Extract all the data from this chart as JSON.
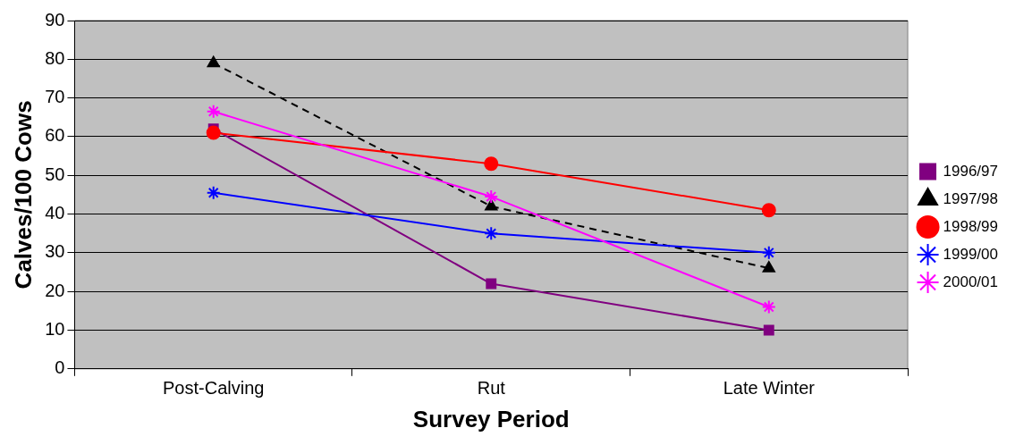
{
  "chart_data": {
    "type": "line",
    "xlabel": "Survey Period",
    "ylabel": "Calves/100 Cows",
    "categories": [
      "Post-Calving",
      "Rut",
      "Late Winter"
    ],
    "ylim": [
      0,
      90
    ],
    "yticks": [
      0,
      10,
      20,
      30,
      40,
      50,
      60,
      70,
      80,
      90
    ],
    "grid": "y",
    "legend": "right",
    "series": [
      {
        "name": "1996/97",
        "color": "#800080",
        "marker": "square",
        "line_style": "solid",
        "values": [
          62,
          22,
          10
        ]
      },
      {
        "name": "1997/98",
        "color": "#000000",
        "marker": "triangle",
        "line_style": "dashed",
        "values": [
          79,
          42,
          26
        ]
      },
      {
        "name": "1998/99",
        "color": "#ff0000",
        "marker": "circle",
        "line_style": "solid",
        "values": [
          61,
          53,
          41
        ]
      },
      {
        "name": "1999/00",
        "color": "#0000ff",
        "marker": "cross",
        "line_style": "solid",
        "values": [
          45.5,
          35,
          30
        ]
      },
      {
        "name": "2000/01",
        "color": "#ff00ff",
        "marker": "cross",
        "line_style": "solid",
        "values": [
          66.5,
          44.5,
          16
        ]
      }
    ]
  }
}
